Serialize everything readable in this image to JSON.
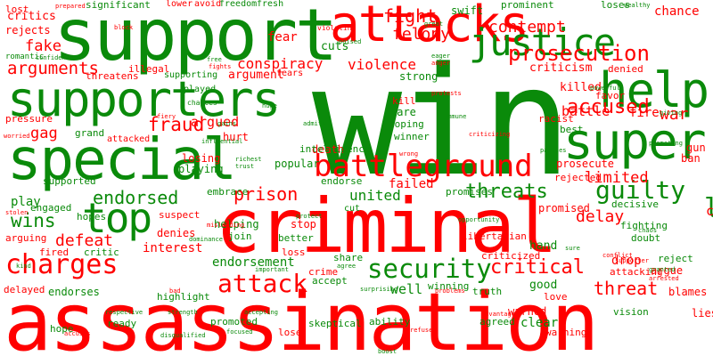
{
  "colors": {
    "green": "#0a8a0a",
    "red": "#ff0000",
    "background": "#ffffff"
  },
  "words": {
    "win": "win",
    "assassination": "assassination",
    "criminal": "criminal",
    "support": "support",
    "special": "special",
    "supporters": "supporters",
    "attacks": "attacks",
    "battleground": "battleground",
    "super": "super",
    "help": "help",
    "charges": "charges",
    "top": "top",
    "justice": "justice",
    "security": "security",
    "prosecution": "prosecution",
    "attack": "attack",
    "accused": "accused",
    "threats": "threats",
    "guilty": "guilty",
    "like": "like",
    "arguments": "arguments",
    "fight": "fight",
    "fraud": "fraud",
    "contempt": "contempt",
    "felony": "felony",
    "prison": "prison",
    "endorsed": "endorsed",
    "wins": "wins",
    "critical": "critical",
    "threat": "threat",
    "conspiracy": "conspiracy",
    "violence": "violence",
    "delay": "delay",
    "defeat": "defeat",
    "endorsement": "endorsement",
    "limited": "limited",
    "fake": "fake",
    "gag": "gag",
    "war": "war",
    "chance": "chance",
    "criticism": "criticism",
    "critics": "critics",
    "rejects": "rejects",
    "lost": "lost",
    "significant": "significant",
    "romantic": "romantic",
    "pressure": "pressure",
    "lower": "lower",
    "avoid": "avoid",
    "freedom": "freedom",
    "fresh": "fresh",
    "swift": "swift",
    "prominent": "prominent",
    "loses": "loses",
    "fear": "fear",
    "cuts": "cuts",
    "strong": "strong",
    "threatens": "threatens",
    "supporting": "supporting",
    "played": "played",
    "argument": "argument",
    "fears": "fears",
    "argued": "argued",
    "care": "care",
    "kill": "kill",
    "killed": "killed",
    "battle": "battle",
    "favor": "favor",
    "fire": "fire",
    "denied": "denied",
    "grand": "grand",
    "attacked": "attacked",
    "hurt": "hurt",
    "death": "death",
    "winner": "winner",
    "hoping": "hoping",
    "best": "best",
    "racist": "racist",
    "illegal": "illegal",
    "intelligence": "intelligence",
    "losing": "losing",
    "playing": "playing",
    "popular": "popular",
    "embrace": "embrace",
    "endorse": "endorse",
    "failed": "failed",
    "cut": "cut",
    "united": "united",
    "promises": "promises",
    "promised": "promised",
    "rejected": "rejected",
    "decisive": "decisive",
    "prosecute": "prosecute",
    "ban": "ban",
    "gun": "gun",
    "charged": "charged",
    "play": "play",
    "engaged": "engaged",
    "hopes": "hopes",
    "supported": "supported",
    "suspect": "suspect",
    "helping": "helping",
    "stop": "stop",
    "join": "join",
    "better": "better",
    "denies": "denies",
    "interest": "interest",
    "fired": "fired",
    "critic": "critic",
    "arguing": "arguing",
    "loss": "loss",
    "libertarian": "libertarian",
    "share": "share",
    "hand": "hand",
    "doubt": "doubt",
    "reject": "reject",
    "argue": "argue",
    "fighting": "fighting",
    "criticized": "criticized",
    "endorses": "endorses",
    "delayed": "delayed",
    "highlight": "highlight",
    "accept": "accept",
    "crime": "crime",
    "well": "well",
    "winning": "winning",
    "drop": "drop",
    "good": "good",
    "truth": "truth",
    "love": "love",
    "blames": "blames",
    "hope": "hope",
    "ready": "ready",
    "promoted": "promoted",
    "lose": "lose",
    "skeptical": "skeptical",
    "ability": "ability",
    "agreed": "agreed",
    "clear": "clear",
    "warning": "warning",
    "warned": "warned",
    "attacking": "attacking",
    "vision": "vision",
    "lies": "lies",
    "prepared": "prepared",
    "block": "block",
    "violating": "violating",
    "great": "great",
    "wealthy": "wealthy",
    "confidence": "confidence",
    "free": "free",
    "fights": "fights",
    "poised": "poised",
    "eager": "eager",
    "anger": "anger",
    "powerful": "powerful",
    "giving": "giving",
    "protests": "protests",
    "fiery": "fiery",
    "gains": "gains",
    "huge": "huge",
    "admits": "admits",
    "immune": "immune",
    "criticizing": "criticizing",
    "worried": "worried",
    "chances": "chances",
    "influential": "influential",
    "richest": "richest",
    "trust": "trust",
    "wrong": "wrong",
    "parties": "parties",
    "promoting": "promoting",
    "stolen": "stolen",
    "misleading": "misleading",
    "dominance": "dominance",
    "protect": "protect",
    "opportunity": "opportunity",
    "chaos": "chaos",
    "conflict": "conflict",
    "granted": "granted",
    "arrested": "arrested",
    "sure": "sure",
    "supporter": "supporter",
    "kind": "kind",
    "important": "important",
    "agree": "agree",
    "surprising": "surprising",
    "problems": "problems",
    "advantage": "advantage",
    "bad": "bad",
    "respective": "respective",
    "strength": "strength",
    "accepting": "accepting",
    "focused": "focused",
    "accuses": "accuses",
    "disqualified": "disqualified",
    "refused": "refused",
    "boost": "boost"
  }
}
